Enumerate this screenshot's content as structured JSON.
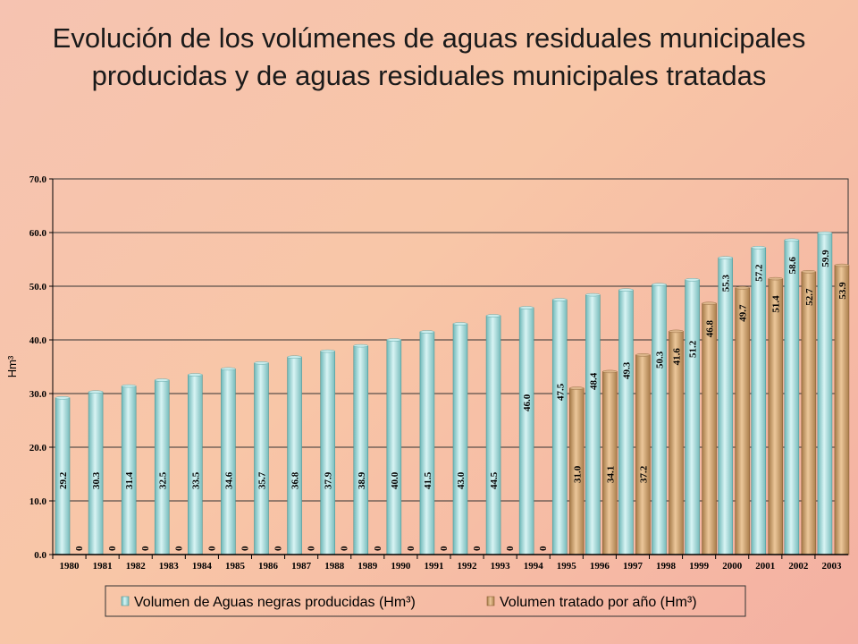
{
  "chart_data": {
    "type": "bar",
    "title": "Evolución de los volúmenes de aguas residuales municipales producidas y de aguas residuales municipales tratadas",
    "ylabel": "Hm³",
    "xlabel": "",
    "ylim": [
      0,
      70
    ],
    "yticks": [
      "0.0",
      "10.0",
      "20.0",
      "30.0",
      "40.0",
      "50.0",
      "60.0",
      "70.0"
    ],
    "categories": [
      "1980",
      "1981",
      "1982",
      "1983",
      "1984",
      "1985",
      "1986",
      "1987",
      "1988",
      "1989",
      "1990",
      "1991",
      "1992",
      "1993",
      "1994",
      "1995",
      "1996",
      "1997",
      "1998",
      "1999",
      "2000",
      "2001",
      "2002",
      "2003"
    ],
    "series": [
      {
        "name": "Volumen de Aguas negras producidas (Hm³)",
        "color": "#a8dcdc",
        "values": [
          29.2,
          30.3,
          31.4,
          32.5,
          33.5,
          34.6,
          35.7,
          36.8,
          37.9,
          38.9,
          40.0,
          41.5,
          43.0,
          44.5,
          46.0,
          47.5,
          48.4,
          49.3,
          50.3,
          51.2,
          55.3,
          57.2,
          58.6,
          59.9
        ],
        "labels": [
          "29.2",
          "30.3",
          "31.4",
          "32.5",
          "33.5",
          "34.6",
          "35.7",
          "36.8",
          "37.9",
          "38.9",
          "40.0",
          "41.5",
          "43.0",
          "44.5",
          "46.0",
          "47.5",
          "48.4",
          "49.3",
          "50.3",
          "51.2",
          "55.3",
          "57.2",
          "58.6",
          "59.9"
        ]
      },
      {
        "name": "Volumen tratado por año (Hm³)",
        "color": "#c8a070",
        "values": [
          0,
          0,
          0,
          0,
          0,
          0,
          0,
          0,
          0,
          0,
          0,
          0,
          0,
          0,
          0,
          31.0,
          34.1,
          37.2,
          41.6,
          46.8,
          49.7,
          51.4,
          52.7,
          53.9
        ],
        "labels": [
          "0",
          "0",
          "0",
          "0",
          "0",
          "0",
          "0",
          "0",
          "0",
          "0",
          "0",
          "0",
          "0",
          "0",
          "0",
          "31.0",
          "34.1",
          "37.2",
          "41.6",
          "46.8",
          "49.7",
          "51.4",
          "52.7",
          "53.9"
        ]
      }
    ],
    "grid": true,
    "legend_position": "bottom"
  }
}
